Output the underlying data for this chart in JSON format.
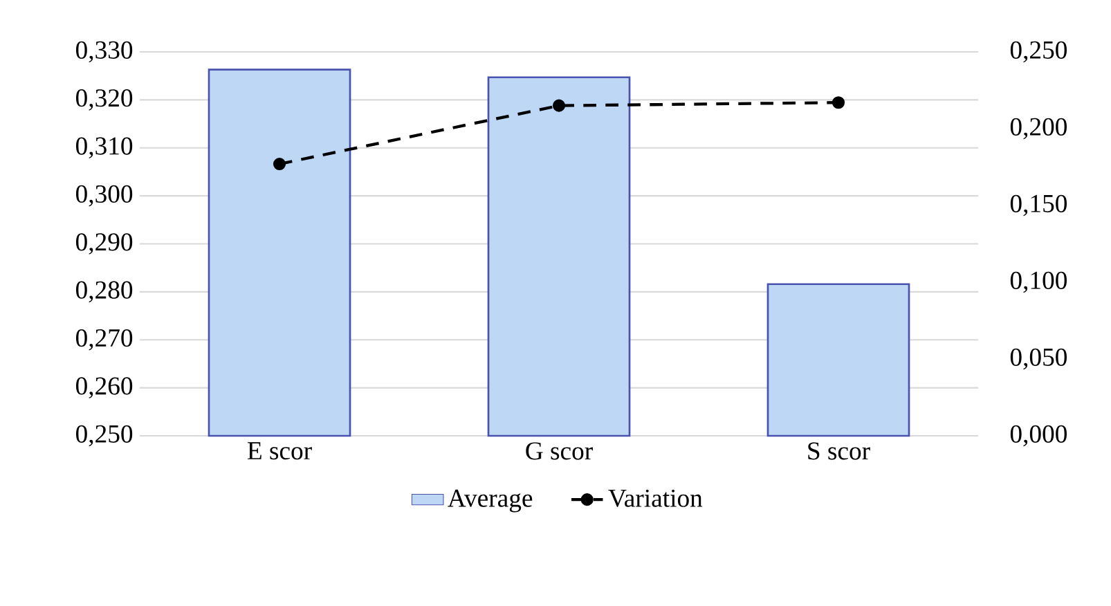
{
  "chart_data": {
    "type": "bar",
    "categories": [
      "E scor",
      "G scor",
      "S scor"
    ],
    "series": [
      {
        "name": "Average",
        "color": "#bdd7f5",
        "values": [
          0.3263,
          0.3247,
          0.2816
        ]
      },
      {
        "name": "Variation",
        "type": "line",
        "axis": "y2",
        "color": "#000000",
        "marker": "circle",
        "line_style": "dashed",
        "values": [
          0.177,
          0.215,
          0.217
        ]
      }
    ],
    "ylim": [
      0.25,
      0.33
    ],
    "yticks": [
      {
        "value": 0.25,
        "label": "0,250"
      },
      {
        "value": 0.26,
        "label": "0,260"
      },
      {
        "value": 0.27,
        "label": "0,270"
      },
      {
        "value": 0.28,
        "label": "0,280"
      },
      {
        "value": 0.29,
        "label": "0,290"
      },
      {
        "value": 0.3,
        "label": "0,300"
      },
      {
        "value": 0.31,
        "label": "0,310"
      },
      {
        "value": 0.32,
        "label": "0,320"
      },
      {
        "value": 0.33,
        "label": "0,330"
      }
    ],
    "y2lim": [
      0,
      0.25
    ],
    "y2ticks": [
      {
        "value": 0,
        "label": "0,000"
      },
      {
        "value": 0.05,
        "label": "0,050"
      },
      {
        "value": 0.1,
        "label": "0,100"
      },
      {
        "value": 0.15,
        "label": "0,150"
      },
      {
        "value": 0.2,
        "label": "0,200"
      },
      {
        "value": 0.25,
        "label": "0,250"
      }
    ],
    "grid": "y",
    "legend": "bottom"
  }
}
